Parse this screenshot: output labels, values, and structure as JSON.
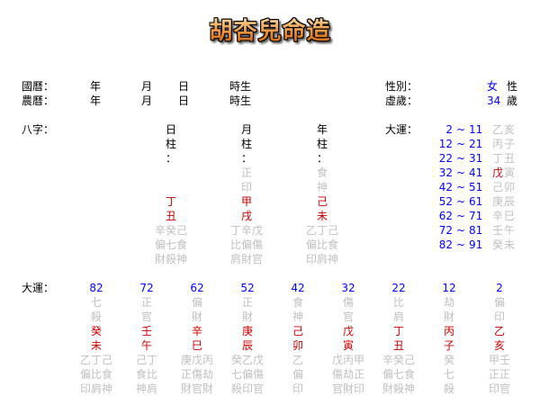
{
  "title": "胡杏兒命造",
  "colors": {
    "age": "#0000ff",
    "stem_branch": "#cc0000",
    "muted": "#c0c0c0",
    "title": "#e8862a"
  },
  "solar": {
    "label": "國曆：",
    "year": "年",
    "month": "月",
    "day": "日",
    "hour": "時生"
  },
  "lunar": {
    "label": "農曆：",
    "year": "年",
    "month": "月",
    "day": "日",
    "hour": "時生"
  },
  "gender": {
    "label": "性別：",
    "value": "女",
    "suffix": "性"
  },
  "age": {
    "label": "虛歲：",
    "value": "34",
    "suffix": "歲"
  },
  "bazi": {
    "label": "八字：",
    "pillars": [
      {
        "name": "日柱",
        "title": [
          "日",
          "柱",
          "："
        ],
        "shishen": [
          "",
          ""
        ],
        "stem": "丁",
        "branch": "丑",
        "hidden": [
          "辛癸己",
          "偏七食",
          "財殺神"
        ]
      },
      {
        "name": "月柱",
        "title": [
          "月",
          "柱",
          "："
        ],
        "shishen": [
          "正",
          "印"
        ],
        "stem": "甲",
        "branch": "戌",
        "hidden": [
          "丁辛戊",
          "比偏傷",
          "肩財官"
        ]
      },
      {
        "name": "年柱",
        "title": [
          "年",
          "柱",
          "："
        ],
        "shishen": [
          "食",
          "神"
        ],
        "stem": "己",
        "branch": "未",
        "hidden": [
          "乙丁己",
          "偏比食",
          "印肩神"
        ]
      }
    ]
  },
  "dayun_list": {
    "label": "大運：",
    "separator": "~",
    "items": [
      {
        "from": "2",
        "to": "11",
        "stem": "乙",
        "branch": "亥",
        "highlight": false
      },
      {
        "from": "12",
        "to": "21",
        "stem": "丙",
        "branch": "子",
        "highlight": false
      },
      {
        "from": "22",
        "to": "31",
        "stem": "丁",
        "branch": "丑",
        "highlight": false
      },
      {
        "from": "32",
        "to": "41",
        "stem": "戊",
        "branch": "寅",
        "highlight": true
      },
      {
        "from": "42",
        "to": "51",
        "stem": "己",
        "branch": "卯",
        "highlight": false
      },
      {
        "from": "52",
        "to": "61",
        "stem": "庚",
        "branch": "辰",
        "highlight": false
      },
      {
        "from": "62",
        "to": "71",
        "stem": "辛",
        "branch": "巳",
        "highlight": false
      },
      {
        "from": "72",
        "to": "81",
        "stem": "壬",
        "branch": "午",
        "highlight": false
      },
      {
        "from": "82",
        "to": "91",
        "stem": "癸",
        "branch": "未",
        "highlight": false
      }
    ]
  },
  "dayun_columns": {
    "label": "大運：",
    "items": [
      {
        "age": "82",
        "shishen": [
          "七",
          "殺"
        ],
        "stem": "癸",
        "branch": "未",
        "hidden": [
          "乙丁己",
          "偏比食",
          "印肩神"
        ]
      },
      {
        "age": "72",
        "shishen": [
          "正",
          "官"
        ],
        "stem": "壬",
        "branch": "午",
        "hidden": [
          "己丁",
          "食比",
          "神肩"
        ]
      },
      {
        "age": "62",
        "shishen": [
          "偏",
          "財"
        ],
        "stem": "辛",
        "branch": "巳",
        "hidden": [
          "庚戊丙",
          "正傷劫",
          "財官財"
        ]
      },
      {
        "age": "52",
        "shishen": [
          "正",
          "財"
        ],
        "stem": "庚",
        "branch": "辰",
        "hidden": [
          "癸乙戊",
          "七偏傷",
          "殺印官"
        ]
      },
      {
        "age": "42",
        "shishen": [
          "食",
          "神"
        ],
        "stem": "己",
        "branch": "卯",
        "hidden": [
          "乙",
          "偏",
          "印"
        ]
      },
      {
        "age": "32",
        "shishen": [
          "傷",
          "官"
        ],
        "stem": "戊",
        "branch": "寅",
        "hidden": [
          "戊丙甲",
          "傷劫正",
          "官財印"
        ]
      },
      {
        "age": "22",
        "shishen": [
          "比",
          "肩"
        ],
        "stem": "丁",
        "branch": "丑",
        "hidden": [
          "辛癸己",
          "偏七食",
          "財殺神"
        ]
      },
      {
        "age": "12",
        "shishen": [
          "劫",
          "財"
        ],
        "stem": "丙",
        "branch": "子",
        "hidden": [
          "癸",
          "七",
          "殺"
        ]
      },
      {
        "age": "2",
        "shishen": [
          "偏",
          "印"
        ],
        "stem": "乙",
        "branch": "亥",
        "hidden": [
          "甲壬",
          "正正",
          "印官"
        ]
      }
    ]
  }
}
